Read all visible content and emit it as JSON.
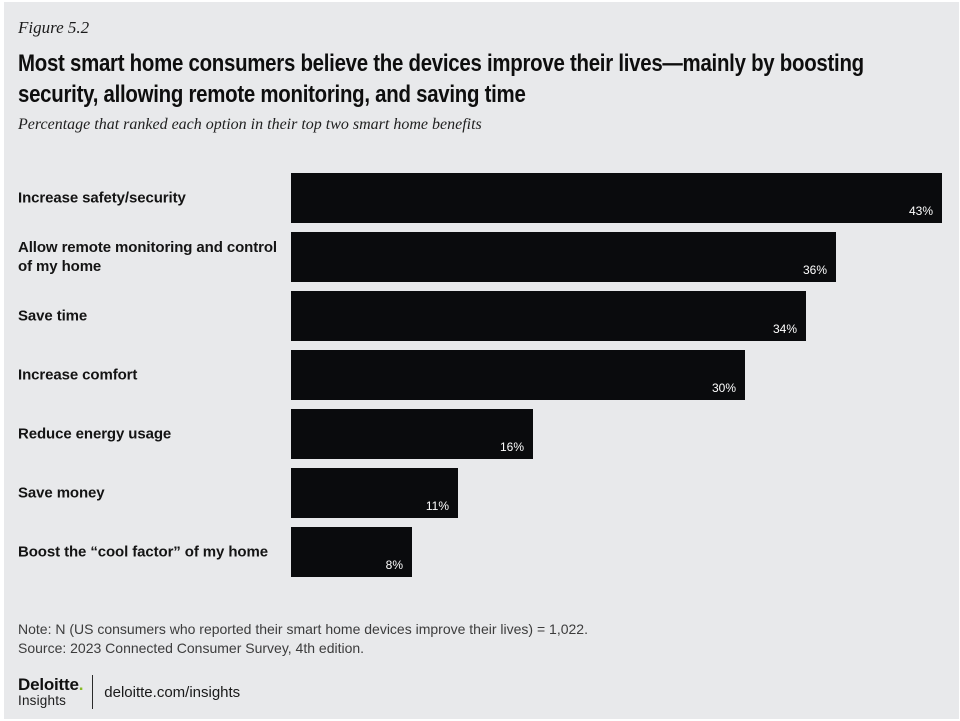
{
  "figure_label": "Figure 5.2",
  "chart_data": {
    "type": "bar",
    "orientation": "horizontal",
    "title": "Most smart home consumers believe the devices improve their lives—mainly by boosting security, allowing remote monitoring, and saving time",
    "subtitle": "Percentage that ranked each option in their top two smart home benefits",
    "categories": [
      "Increase safety/security",
      "Allow remote monitoring and control of my home",
      "Save time",
      "Increase comfort",
      "Reduce energy usage",
      "Save money",
      "Boost the “cool factor” of my home"
    ],
    "values": [
      43,
      36,
      34,
      30,
      16,
      11,
      8
    ],
    "value_labels": [
      "43%",
      "36%",
      "34%",
      "30%",
      "16%",
      "11%",
      "8%"
    ],
    "xlim": [
      0,
      43
    ],
    "axis_visible": false,
    "grid": false,
    "legend": "none",
    "bar_color": "#0a0b0d",
    "value_label_color": "#ffffff"
  },
  "footer": {
    "note": "Note: N (US consumers who reported their smart home devices improve their lives) = 1,022.",
    "source": "Source: 2023 Connected Consumer Survey, 4th edition.",
    "logo": {
      "brand": "Deloitte",
      "dot": ".",
      "sub": "Insights",
      "url": "deloitte.com/insights",
      "dot_color": "#86bc25"
    }
  },
  "colors": {
    "background": "#e8e9eb",
    "page": "#ffffff",
    "title_text": "#0e0e0e",
    "note_text": "#3c3c3c"
  }
}
